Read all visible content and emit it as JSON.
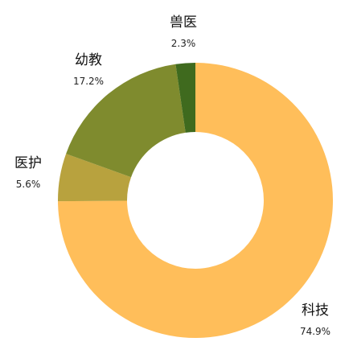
{
  "chart_data": {
    "type": "pie",
    "donut": true,
    "categories": [
      "科技",
      "医护",
      "幼教",
      "兽医"
    ],
    "values": [
      74.9,
      5.6,
      17.2,
      2.3
    ],
    "value_labels": [
      "74.9%",
      "5.6%",
      "17.2%",
      "2.3%"
    ],
    "colors": [
      "#FFBE5A",
      "#B8A23E",
      "#7F8B2E",
      "#3F6A1E"
    ],
    "start": "12 o'clock",
    "direction": "clockwise",
    "legend": "none"
  }
}
